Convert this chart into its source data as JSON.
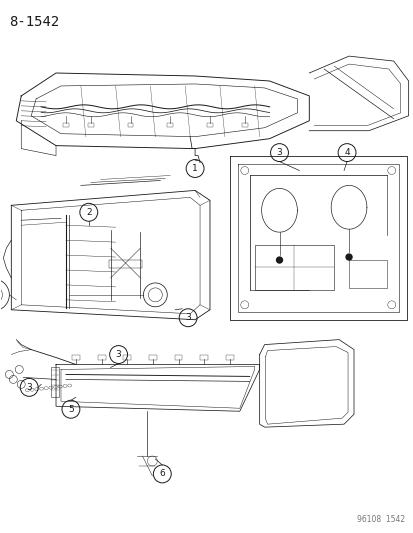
{
  "title": "8-1542",
  "footer": "96108  1542",
  "bg_color": "#ffffff",
  "fg_color": "#1a1a1a",
  "title_fontsize": 10,
  "footer_fontsize": 5.5,
  "fig_width": 4.14,
  "fig_height": 5.33,
  "dpi": 100,
  "gray": "#555555"
}
